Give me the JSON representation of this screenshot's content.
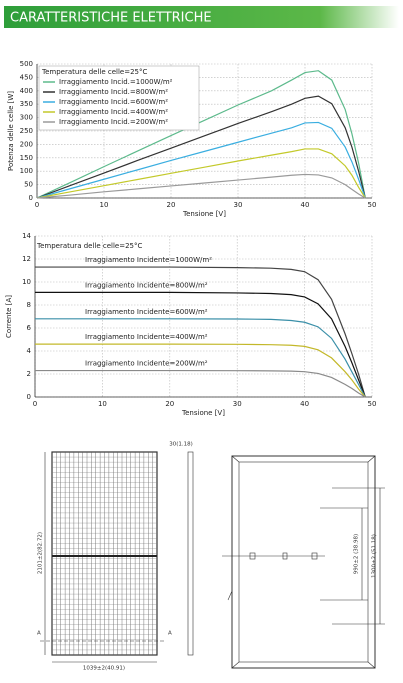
{
  "header": {
    "title": "CARATTERISTICHE ELETTRICHE"
  },
  "chart_data": [
    {
      "type": "line",
      "annotation": "Temperatura delle celle=25°C",
      "xlabel": "Tensione [V]",
      "ylabel": "Potenza delle celle [W]",
      "x": [
        0,
        5,
        10,
        15,
        20,
        25,
        30,
        35,
        38,
        40,
        42,
        44,
        46,
        47,
        48,
        49
      ],
      "series": [
        {
          "name": "Irraggiamento Incid.=1000W/m²",
          "color": "#5dba8c",
          "values": [
            0,
            58,
            117,
            175,
            233,
            290,
            347,
            400,
            440,
            468,
            475,
            440,
            330,
            240,
            130,
            0
          ]
        },
        {
          "name": "Irraggiamento Incid.=800W/m²",
          "color": "#333333",
          "values": [
            0,
            47,
            93,
            140,
            186,
            232,
            278,
            322,
            350,
            372,
            380,
            352,
            262,
            190,
            100,
            0
          ]
        },
        {
          "name": "Irraggiamento Incid.=600W/m²",
          "color": "#3aaee0",
          "values": [
            0,
            35,
            70,
            105,
            140,
            174,
            208,
            242,
            262,
            280,
            282,
            260,
            190,
            135,
            70,
            0
          ]
        },
        {
          "name": "Irraggiamento Incid.=400W/m²",
          "color": "#c3c92a",
          "values": [
            0,
            23,
            46,
            69,
            92,
            115,
            138,
            160,
            173,
            183,
            183,
            165,
            120,
            85,
            40,
            0
          ]
        },
        {
          "name": "Irraggiamento Incid.=200W/m²",
          "color": "#9a9a9a",
          "values": [
            0,
            11,
            23,
            34,
            45,
            56,
            67,
            78,
            85,
            88,
            86,
            75,
            50,
            32,
            15,
            0
          ]
        }
      ],
      "xlim": [
        0,
        50
      ],
      "xticks": [
        0,
        10,
        20,
        30,
        40,
        50
      ],
      "ylim": [
        0,
        500
      ],
      "yticks": [
        0,
        50,
        100,
        150,
        200,
        250,
        300,
        350,
        400,
        450,
        500
      ],
      "grid": true,
      "legend": "upper left"
    },
    {
      "type": "line",
      "annotation": "Temperatura delle celle=25°C",
      "xlabel": "Tensione [V]",
      "ylabel": "Corrente [A]",
      "x": [
        0,
        10,
        20,
        30,
        35,
        38,
        40,
        42,
        44,
        46,
        47,
        48,
        49
      ],
      "series": [
        {
          "name": "Irraggiamento Incidente=1000W/m²",
          "color": "#444444",
          "values": [
            11.3,
            11.3,
            11.3,
            11.25,
            11.2,
            11.1,
            10.9,
            10.2,
            8.5,
            5.5,
            3.8,
            2,
            0
          ]
        },
        {
          "name": "Irraggiamento Incidente=800W/m²",
          "color": "#111111",
          "values": [
            9.1,
            9.1,
            9.1,
            9.05,
            9,
            8.9,
            8.7,
            8.1,
            6.8,
            4.4,
            3,
            1.5,
            0
          ]
        },
        {
          "name": "Irraggiamento Incidente=600W/m²",
          "color": "#3a8fa8",
          "values": [
            6.8,
            6.8,
            6.8,
            6.78,
            6.75,
            6.65,
            6.5,
            6.1,
            5.1,
            3.3,
            2.2,
            1.1,
            0
          ]
        },
        {
          "name": "Irraggiamento Incidente=400W/m²",
          "color": "#c3b82a",
          "values": [
            4.6,
            4.6,
            4.6,
            4.58,
            4.55,
            4.5,
            4.4,
            4.1,
            3.4,
            2.2,
            1.5,
            0.7,
            0
          ]
        },
        {
          "name": "Irraggiamento Incidente=200W/m²",
          "color": "#8a8a8a",
          "values": [
            2.3,
            2.3,
            2.3,
            2.29,
            2.27,
            2.25,
            2.2,
            2.05,
            1.7,
            1.1,
            0.75,
            0.35,
            0
          ]
        }
      ],
      "xlim": [
        0,
        50
      ],
      "xticks": [
        0,
        10,
        20,
        30,
        40,
        50
      ],
      "ylim": [
        0,
        14
      ],
      "yticks": [
        0,
        2,
        4,
        6,
        8,
        10,
        12,
        14
      ],
      "grid": true,
      "legend": "inline"
    }
  ],
  "drawing": {
    "side_depth": "30(1.18)",
    "height": "2101±2(82.72)",
    "width": "1039±2(40.91)",
    "mount_spacing": "990±2 (38.98)",
    "mount_length": "1300±2 (51.18)",
    "section_left": "A",
    "section_right": "A"
  }
}
